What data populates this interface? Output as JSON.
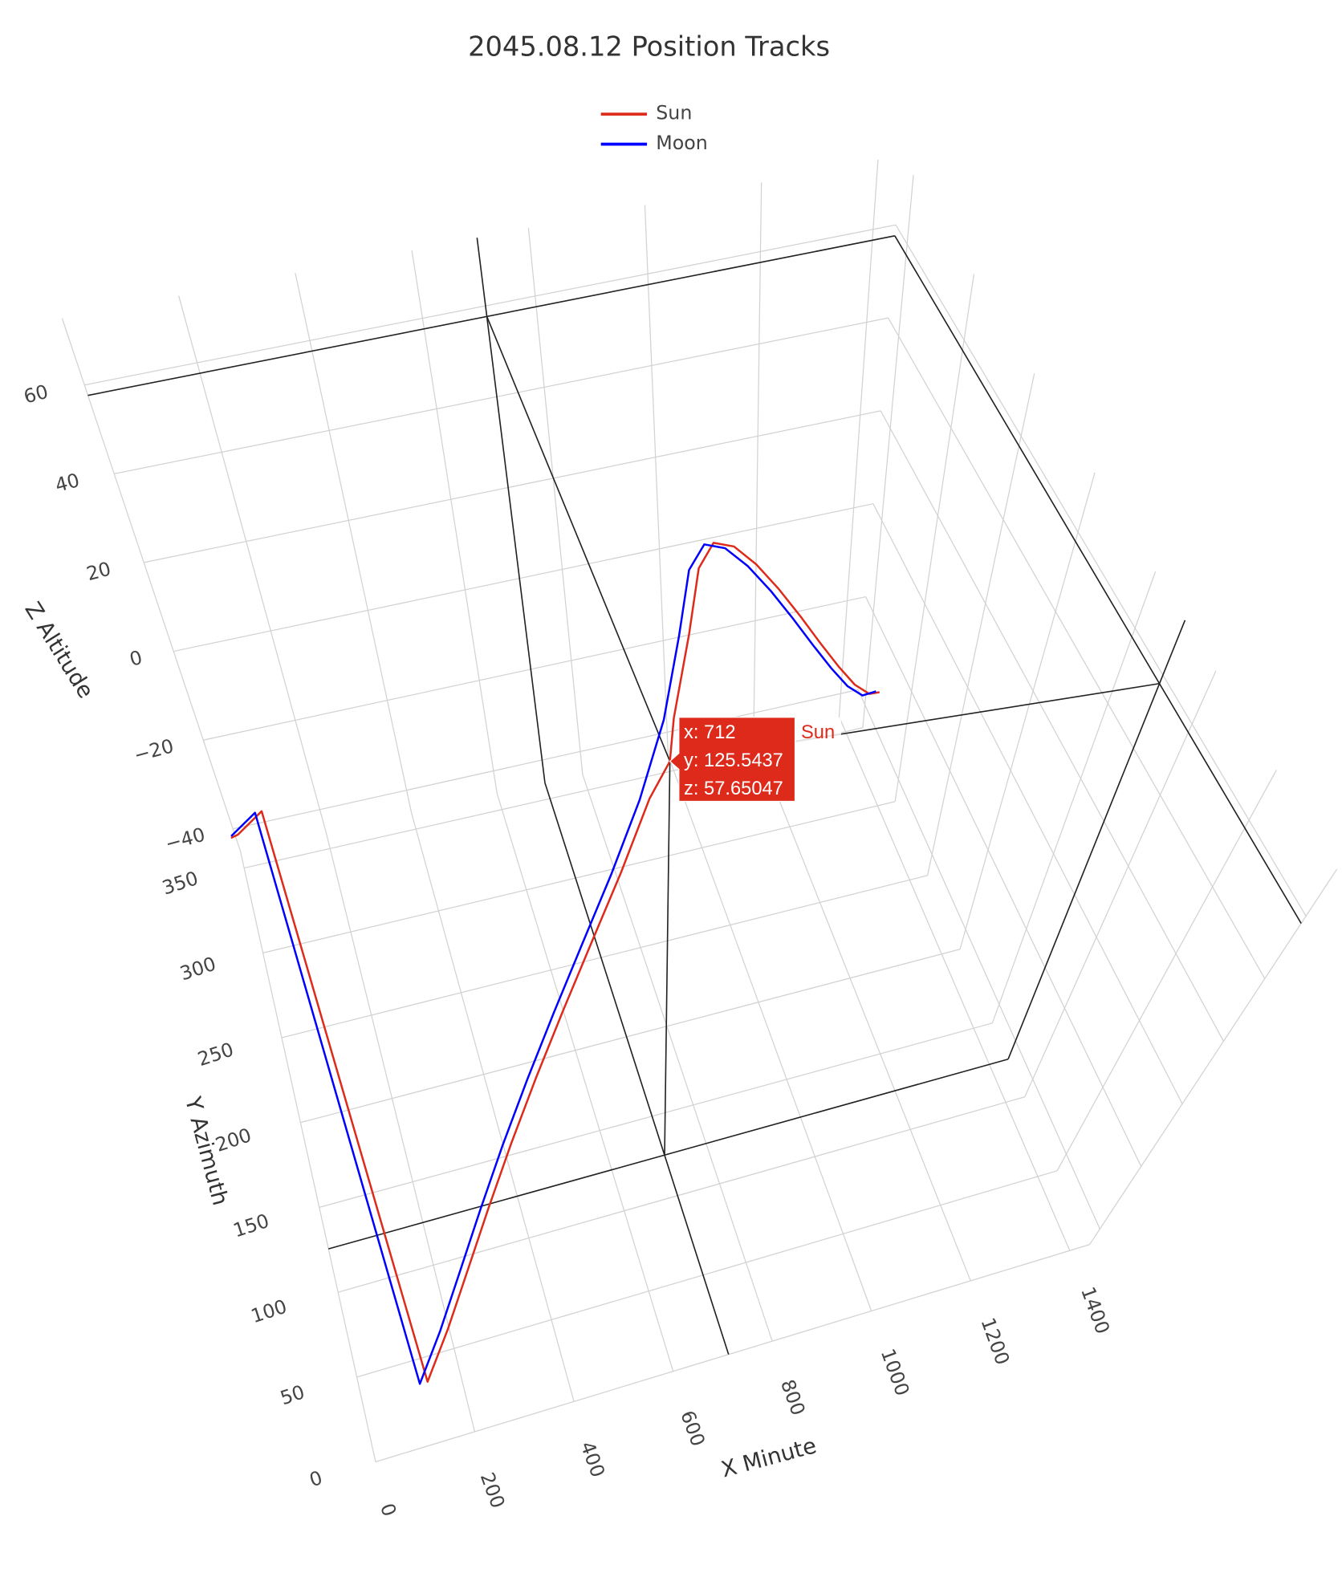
{
  "chart_data": {
    "type": "line3d",
    "title": "2045.08.12 Position Tracks",
    "xaxis_title": "X Minute",
    "yaxis_title": "Y Azimuth",
    "zaxis_title": "Z Altitude",
    "xlim": [
      0,
      1440
    ],
    "ylim": [
      0,
      360
    ],
    "zlim": [
      -45,
      75
    ],
    "xticks": [
      0,
      200,
      400,
      600,
      800,
      1000,
      1200,
      1400
    ],
    "yticks": [
      0,
      50,
      100,
      150,
      200,
      250,
      300,
      350
    ],
    "zticks": [
      {
        "value": -40,
        "label": "−40"
      },
      {
        "value": -20,
        "label": "−20"
      },
      0,
      20,
      40,
      60
    ],
    "grid": true,
    "legend": "top",
    "series": [
      {
        "name": "Sun",
        "color": "#dd2a1a",
        "x": [
          0,
          15,
          75,
          135,
          195,
          255,
          315,
          375,
          435,
          495,
          555,
          615,
          675,
          712,
          735,
          795,
          855,
          915,
          975,
          1035,
          1095,
          1155,
          1215,
          1275,
          1335,
          1395,
          1440
        ],
        "y": [
          334.1,
          338.2,
          355.4,
          13.3,
          29.8,
          44.1,
          56.1,
          66.6,
          76.0,
          85.0,
          94.5,
          105.4,
          119.6,
          125.5437,
          140.3,
          171.0,
          205.5,
          231.2,
          248.1,
          260.4,
          270.4,
          279.5,
          288.6,
          298.5,
          309.7,
          322.8,
          334.1
        ],
        "z": [
          -32.0,
          -33.2,
          -35.9,
          -35.0,
          -30.7,
          -23.7,
          -14.7,
          -4.5,
          6.5,
          18.0,
          29.7,
          41.1,
          51.9,
          57.65047,
          60.9,
          65.8,
          64.0,
          56.7,
          46.6,
          35.4,
          23.8,
          12.2,
          0.9,
          -9.7,
          -19.4,
          -27.5,
          -32.0
        ]
      },
      {
        "name": "Moon",
        "color": "#0000ff",
        "x": [
          0,
          60,
          120,
          180,
          240,
          300,
          360,
          420,
          480,
          540,
          600,
          660,
          720,
          780,
          840,
          900,
          960,
          1020,
          1080,
          1140,
          1200,
          1260,
          1320,
          1380,
          1440
        ],
        "y": [
          338.2,
          355.4,
          13.3,
          29.8,
          44.1,
          56.1,
          66.6,
          76.0,
          85.0,
          94.5,
          105.4,
          119.6,
          140.3,
          171.0,
          205.5,
          231.2,
          248.1,
          260.4,
          270.4,
          279.5,
          288.6,
          298.5,
          309.7,
          322.8,
          338.2
        ],
        "z": [
          -33.2,
          -35.9,
          -35.0,
          -30.7,
          -23.7,
          -14.7,
          -4.5,
          6.5,
          18.0,
          29.7,
          41.1,
          51.9,
          60.9,
          65.8,
          64.0,
          56.7,
          46.6,
          35.4,
          23.8,
          12.2,
          0.9,
          -9.7,
          -19.4,
          -27.5,
          -33.2
        ]
      }
    ],
    "hover": {
      "name": "Sun",
      "x": {
        "value": 712,
        "label": "x: 712"
      },
      "y": {
        "value": 125.5437,
        "label": "y: 125.5437"
      },
      "z": {
        "value": 57.65047,
        "label": "z: 57.65047"
      }
    }
  }
}
